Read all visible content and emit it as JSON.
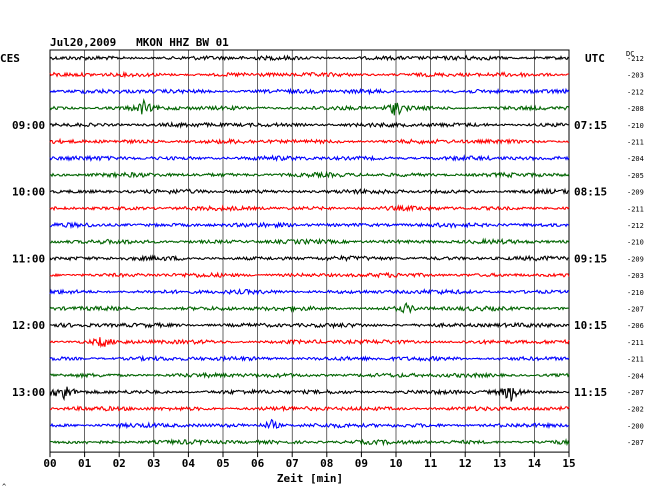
{
  "header": {
    "station_title": "Jul20,2009   MKON HHZ BW 01",
    "left_tz": "CES",
    "right_tz": "UTC",
    "dc_label": "DC"
  },
  "footer": {
    "xlabel": "Zeit [min]",
    "corner_mark": "^"
  },
  "colors": {
    "cycle": [
      "#000000",
      "#ff0000",
      "#0000ff",
      "#006400"
    ],
    "grid": "#000000",
    "background": "#ffffff"
  },
  "chart_data": {
    "type": "line",
    "title": "Jul20,2009   MKON HHZ BW 01",
    "xlabel": "Zeit [min]",
    "xlim": [
      0,
      15
    ],
    "x_ticks": [
      "00",
      "01",
      "02",
      "03",
      "04",
      "05",
      "06",
      "07",
      "08",
      "09",
      "10",
      "11",
      "12",
      "13",
      "14",
      "15"
    ],
    "grid": true,
    "left_time_labels": [
      {
        "trace": 4,
        "text": "09:00"
      },
      {
        "trace": 8,
        "text": "10:00"
      },
      {
        "trace": 12,
        "text": "11:00"
      },
      {
        "trace": 16,
        "text": "12:00"
      },
      {
        "trace": 20,
        "text": "13:00"
      }
    ],
    "right_time_labels": [
      {
        "trace": 4,
        "text": "07:15"
      },
      {
        "trace": 8,
        "text": "08:15"
      },
      {
        "trace": 12,
        "text": "09:15"
      },
      {
        "trace": 16,
        "text": "10:15"
      },
      {
        "trace": 20,
        "text": "11:15"
      }
    ],
    "dc_offsets": [
      -212,
      -203,
      -212,
      -208,
      -210,
      -211,
      -204,
      -205,
      -209,
      -211,
      -212,
      -210,
      -209,
      -203,
      -210,
      -207,
      -206,
      -211,
      -211,
      -204,
      -207,
      -202,
      -200,
      -207
    ],
    "events": [
      {
        "trace": 3,
        "minute": 2.7,
        "amplitude": 2.0
      },
      {
        "trace": 3,
        "minute": 10.0,
        "amplitude": 2.5
      },
      {
        "trace": 17,
        "minute": 1.5,
        "amplitude": 1.6
      },
      {
        "trace": 20,
        "minute": 0.4,
        "amplitude": 2.8
      },
      {
        "trace": 20,
        "minute": 13.3,
        "amplitude": 3.0
      },
      {
        "trace": 22,
        "minute": 6.4,
        "amplitude": 1.8
      },
      {
        "trace": 15,
        "minute": 10.3,
        "amplitude": 1.4
      }
    ]
  }
}
